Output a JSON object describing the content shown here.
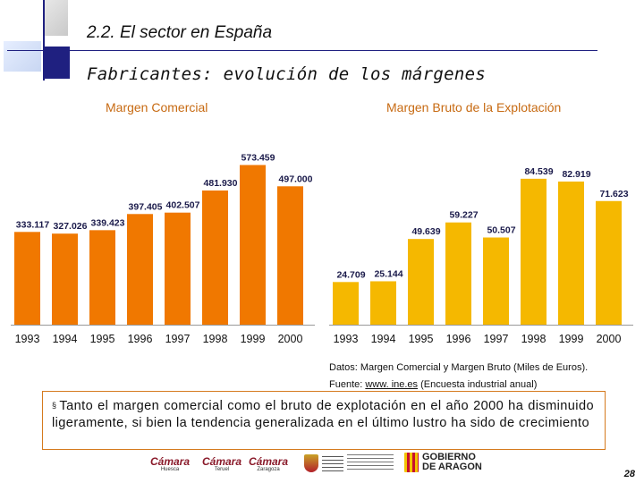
{
  "header": {
    "section_title": "2.2. El sector en España",
    "subtitle": "Fabricantes: evolución de los márgenes"
  },
  "chart_data": [
    {
      "type": "bar",
      "title": "Margen Comercial",
      "categories": [
        "1993",
        "1994",
        "1995",
        "1996",
        "1997",
        "1998",
        "1999",
        "2000"
      ],
      "values": [
        333117,
        327026,
        339423,
        397405,
        402507,
        481930,
        573459,
        497000
      ],
      "labels": [
        "333.117",
        "327.026",
        "339.423",
        "397.405",
        "402.507",
        "481.930",
        "573.459",
        "497.000"
      ],
      "ylim": [
        0,
        620000
      ],
      "grid": false,
      "bar_color": "#f07800"
    },
    {
      "type": "bar",
      "title": "Margen Bruto de la Explotación",
      "categories": [
        "1993",
        "1994",
        "1995",
        "1996",
        "1997",
        "1998",
        "1999",
        "2000"
      ],
      "values": [
        24709,
        25144,
        49639,
        59227,
        50507,
        84539,
        82919,
        71623
      ],
      "labels": [
        "24.709",
        "25.144",
        "49.639",
        "59.227",
        "50.507",
        "84.539",
        "82.919",
        "71.623"
      ],
      "ylim": [
        0,
        100000
      ],
      "grid": false,
      "bar_color": "#f5b800"
    }
  ],
  "source": {
    "line1": "Datos: Margen Comercial y Margen Bruto (Miles de Euros).",
    "line2_prefix": "Fuente: ",
    "line2_link": "www. ine.es",
    "line2_suffix": " (Encuesta industrial anual)"
  },
  "conclusion": {
    "bullet": "§",
    "text": "Tanto el margen comercial como el bruto de explotación en el año 2000 ha disminuido ligeramente, si bien la tendencia generalizada en el último lustro ha sido de crecimiento"
  },
  "footer": {
    "logos": [
      {
        "name": "Cámara",
        "sub": "Huesca"
      },
      {
        "name": "Cámara",
        "sub": "Teruel"
      },
      {
        "name": "Cámara",
        "sub": "Zaragoza"
      }
    ],
    "gobierno_line1": "GOBIERNO",
    "gobierno_line2": "DE ARAGON",
    "page_number": "28"
  }
}
